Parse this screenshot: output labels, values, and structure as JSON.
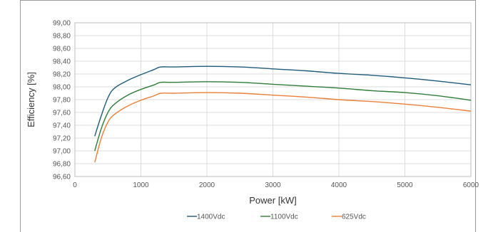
{
  "chart_data": {
    "type": "line",
    "title": "",
    "xlabel": "Power [kW]",
    "ylabel": "Efficiency [%]",
    "xlim": [
      0,
      6000
    ],
    "ylim": [
      96.6,
      99.0
    ],
    "x_ticks": [
      "0",
      "1000",
      "2000",
      "3000",
      "4000",
      "5000",
      "6000"
    ],
    "y_ticks": [
      "96,60",
      "96,80",
      "97,00",
      "97,20",
      "97,40",
      "97,60",
      "97,80",
      "98,00",
      "98,20",
      "98,40",
      "98,60",
      "98,80",
      "99,00"
    ],
    "grid": true,
    "legend_position": "bottom",
    "series": [
      {
        "name": "1400Vdc",
        "color": "#1f5a7a",
        "x": [
          300,
          400,
          500,
          600,
          800,
          1000,
          1200,
          1300,
          1500,
          2000,
          2500,
          3000,
          3500,
          4000,
          4500,
          5000,
          5500,
          6000
        ],
        "y": [
          97.23,
          97.55,
          97.83,
          97.98,
          98.1,
          98.19,
          98.27,
          98.31,
          98.31,
          98.32,
          98.31,
          98.28,
          98.25,
          98.21,
          98.18,
          98.14,
          98.09,
          98.03
        ]
      },
      {
        "name": "1100Vdc",
        "color": "#2e7d3a",
        "x": [
          300,
          400,
          500,
          600,
          800,
          1000,
          1200,
          1300,
          1500,
          2000,
          2500,
          3000,
          3500,
          4000,
          4500,
          5000,
          5500,
          6000
        ],
        "y": [
          97.0,
          97.35,
          97.6,
          97.73,
          97.87,
          97.96,
          98.03,
          98.07,
          98.07,
          98.08,
          98.07,
          98.04,
          98.01,
          97.98,
          97.94,
          97.91,
          97.86,
          97.79
        ]
      },
      {
        "name": "625Vdc",
        "color": "#e8803a",
        "x": [
          300,
          400,
          500,
          600,
          800,
          1000,
          1200,
          1300,
          1500,
          2000,
          2500,
          3000,
          3500,
          4000,
          4500,
          5000,
          5500,
          6000
        ],
        "y": [
          96.82,
          97.2,
          97.45,
          97.57,
          97.7,
          97.79,
          97.86,
          97.9,
          97.9,
          97.91,
          97.9,
          97.87,
          97.84,
          97.8,
          97.77,
          97.73,
          97.68,
          97.62
        ]
      }
    ]
  }
}
